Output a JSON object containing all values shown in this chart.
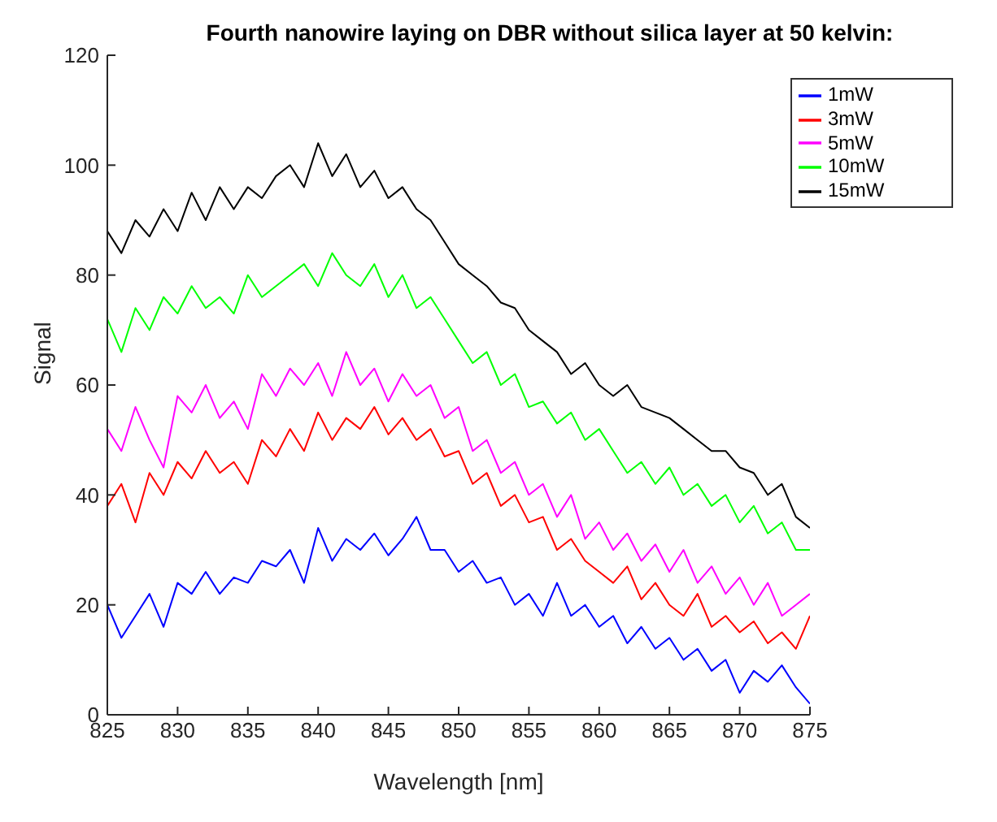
{
  "chart_data": {
    "type": "line",
    "title": "Fourth nanowire laying on DBR without silica layer at 50 kelvin:",
    "xlabel": "Wavelength [nm]",
    "ylabel": "Signal",
    "x": [
      825,
      826,
      827,
      828,
      829,
      830,
      831,
      832,
      833,
      834,
      835,
      836,
      837,
      838,
      839,
      840,
      841,
      842,
      843,
      844,
      845,
      846,
      847,
      848,
      849,
      850,
      851,
      852,
      853,
      854,
      855,
      856,
      857,
      858,
      859,
      860,
      861,
      862,
      863,
      864,
      865,
      866,
      867,
      868,
      869,
      870,
      871,
      872,
      873,
      874,
      875
    ],
    "series": [
      {
        "name": "1mW",
        "color": "#0000ff",
        "values": [
          20,
          14,
          18,
          22,
          16,
          24,
          22,
          26,
          22,
          25,
          24,
          28,
          27,
          30,
          24,
          34,
          28,
          32,
          30,
          33,
          29,
          32,
          36,
          30,
          30,
          26,
          28,
          24,
          25,
          20,
          22,
          18,
          24,
          18,
          20,
          16,
          18,
          13,
          16,
          12,
          14,
          10,
          12,
          8,
          10,
          4,
          8,
          6,
          9,
          5,
          2
        ]
      },
      {
        "name": "3mW",
        "color": "#ff0000",
        "values": [
          38,
          42,
          35,
          44,
          40,
          46,
          43,
          48,
          44,
          46,
          42,
          50,
          47,
          52,
          48,
          55,
          50,
          54,
          52,
          56,
          51,
          54,
          50,
          52,
          47,
          48,
          42,
          44,
          38,
          40,
          35,
          36,
          30,
          32,
          28,
          26,
          24,
          27,
          21,
          24,
          20,
          18,
          22,
          16,
          18,
          15,
          17,
          13,
          15,
          12,
          18
        ]
      },
      {
        "name": "5mW",
        "color": "#ff00ff",
        "values": [
          52,
          48,
          56,
          50,
          45,
          58,
          55,
          60,
          54,
          57,
          52,
          62,
          58,
          63,
          60,
          64,
          58,
          66,
          60,
          63,
          57,
          62,
          58,
          60,
          54,
          56,
          48,
          50,
          44,
          46,
          40,
          42,
          36,
          40,
          32,
          35,
          30,
          33,
          28,
          31,
          26,
          30,
          24,
          27,
          22,
          25,
          20,
          24,
          18,
          20,
          22
        ]
      },
      {
        "name": "10mW",
        "color": "#00ff00",
        "values": [
          72,
          66,
          74,
          70,
          76,
          73,
          78,
          74,
          76,
          73,
          80,
          76,
          78,
          80,
          82,
          78,
          84,
          80,
          78,
          82,
          76,
          80,
          74,
          76,
          72,
          68,
          64,
          66,
          60,
          62,
          56,
          57,
          53,
          55,
          50,
          52,
          48,
          44,
          46,
          42,
          45,
          40,
          42,
          38,
          40,
          35,
          38,
          33,
          35,
          30,
          30
        ]
      },
      {
        "name": "15mW",
        "color": "#000000",
        "values": [
          88,
          84,
          90,
          87,
          92,
          88,
          95,
          90,
          96,
          92,
          96,
          94,
          98,
          100,
          96,
          104,
          98,
          102,
          96,
          99,
          94,
          96,
          92,
          90,
          86,
          82,
          80,
          78,
          75,
          74,
          70,
          68,
          66,
          62,
          64,
          60,
          58,
          60,
          56,
          55,
          54,
          52,
          50,
          48,
          48,
          45,
          44,
          40,
          42,
          36,
          34
        ]
      }
    ],
    "xlim": [
      825,
      875
    ],
    "xticks": [
      825,
      830,
      835,
      840,
      845,
      850,
      855,
      860,
      865,
      870,
      875
    ],
    "ylim": [
      0,
      120
    ],
    "yticks": [
      0,
      20,
      40,
      60,
      80,
      100,
      120
    ],
    "legend": "top right",
    "line_style": "solid",
    "marker": "none"
  }
}
